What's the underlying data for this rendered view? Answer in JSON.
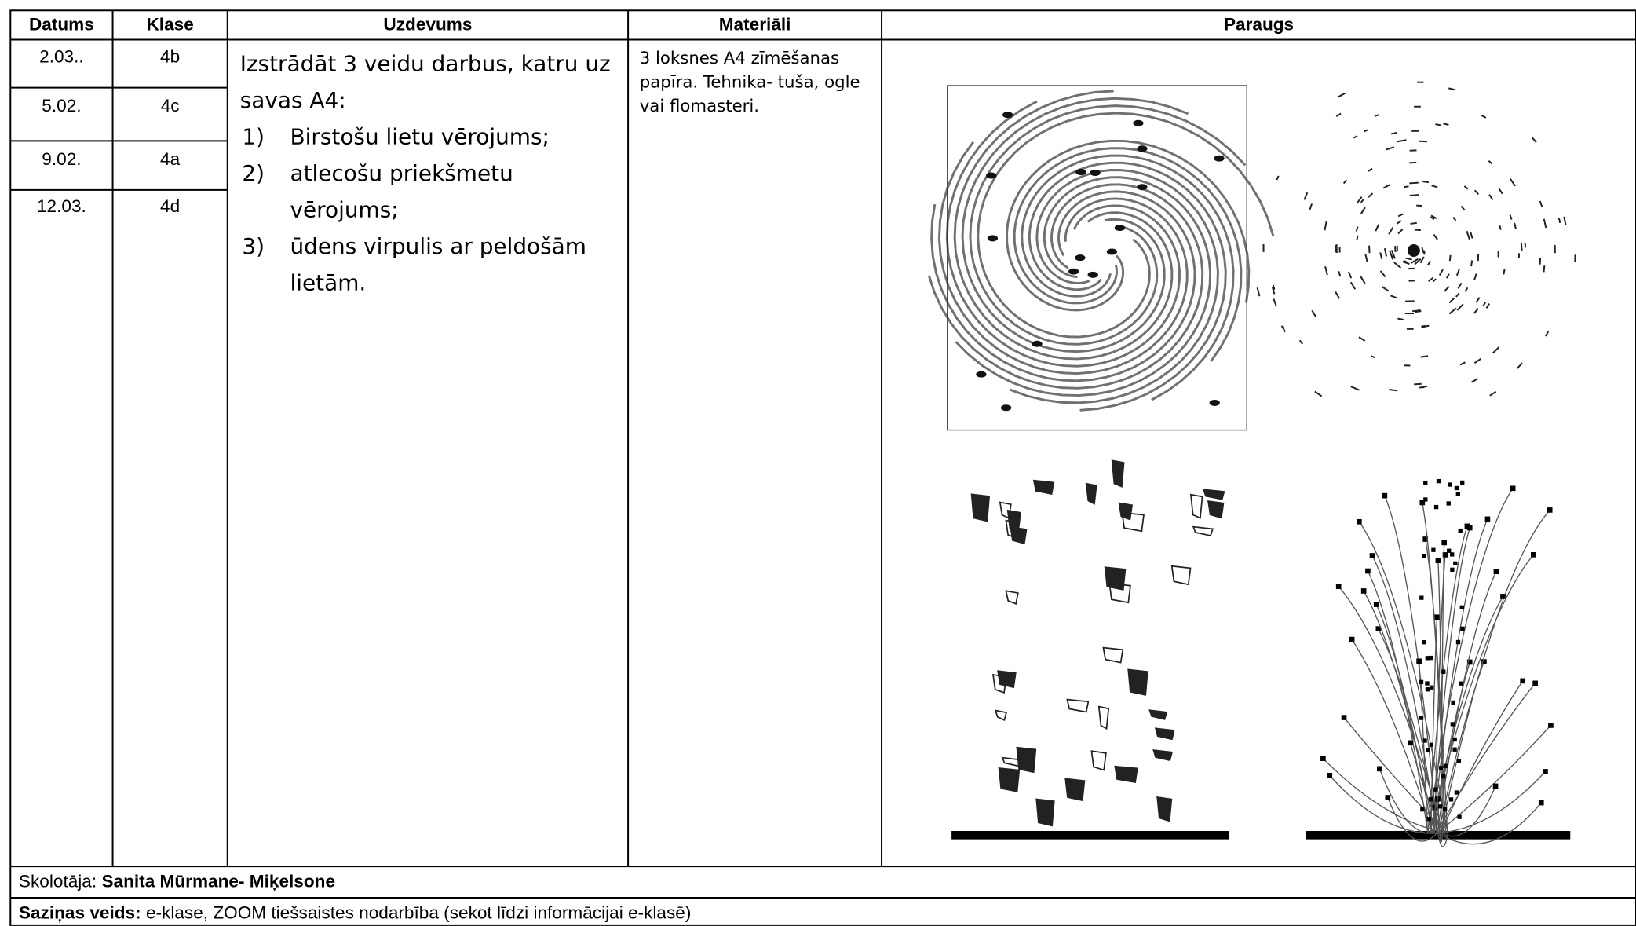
{
  "table": {
    "headers": [
      "Datums",
      "Klase",
      "Uzdevums",
      "Materiāli",
      "Paraugs"
    ],
    "rows": [
      [
        "2.03..",
        "4b"
      ],
      [
        "5.02.",
        "4c"
      ],
      [
        "9.02.",
        "4a"
      ],
      [
        "12.03.",
        "4d"
      ]
    ],
    "task": {
      "intro": "Izstrādāt 3 veidu darbus, katru uz savas A4:",
      "numbers": [
        "1)",
        "2)",
        "3)"
      ],
      "items": [
        "Birstošu lietu vērojums;",
        "atlecošu priekšmetu vērojums;",
        "ūdens virpulis ar peldošām lietām."
      ]
    },
    "materials": "3 loksnes A4 zīmēšanas papīra. Tehnika- tuša, ogle vai flomasteri."
  },
  "footer": {
    "teacher_label": "Skolotāja:",
    "teacher_name": "Sanita Mūrmane- Miķelsone",
    "contact_label": "Saziņas veids:",
    "contact": "e-klase, ZOOM tiešsaistes nodarbība (sekot līdzi informācijai e-klasē)"
  }
}
